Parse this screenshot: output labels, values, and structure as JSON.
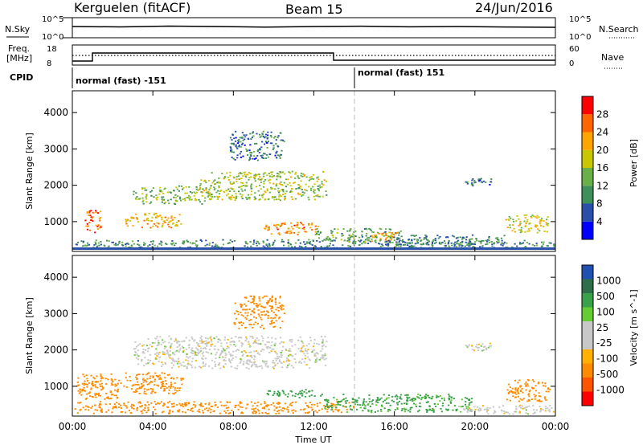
{
  "header": {
    "station": "Kerguelen (fitACF)",
    "beam": "Beam 15",
    "date": "24/Jun/2016"
  },
  "noise_panel": {
    "left_label": "N.Sky",
    "right_label": "N.Search",
    "left_ticks": [
      "10^5",
      "10^0"
    ],
    "right_ticks": [
      "10^5",
      "10^0"
    ]
  },
  "freq_panel": {
    "left_label_line1": "Freq.",
    "left_label_line2": "[MHz]",
    "left_ticks": [
      "18",
      "8"
    ],
    "right_label": "Nave",
    "right_ticks": [
      "60",
      "0"
    ]
  },
  "cpid_panel": {
    "label": "CPID",
    "programs": [
      {
        "name": "normal (fast) -151",
        "start_hour": 0
      },
      {
        "name": "normal (fast) 151",
        "start_hour": 14
      }
    ]
  },
  "colors": {
    "power_scale": [
      "#0000ff",
      "#2a4fa8",
      "#3f8f5a",
      "#6ab04a",
      "#c8c800",
      "#ffa500",
      "#ff6600",
      "#ff0000"
    ],
    "velocity_scale": [
      "#ff0000",
      "#ff5500",
      "#ff8c00",
      "#ffb000",
      "#c8c8c8",
      "#c8c8c8",
      "#66cc33",
      "#3aa04a",
      "#2e6f4a",
      "#2050b0"
    ],
    "ground_scatter": "#c8c8c8"
  },
  "chart_data": [
    {
      "type": "heatmap",
      "title": "",
      "xlabel": "Time UT",
      "ylabel": "Slant Range [km]",
      "colorbar_label": "Power [dB]",
      "colorbar_ticks": [
        "4",
        "8",
        "12",
        "16",
        "20",
        "24",
        "28"
      ],
      "x_ticks": [
        "00:00",
        "04:00",
        "08:00",
        "12:00",
        "16:00",
        "20:00",
        "00:00"
      ],
      "y_ticks": [
        "1000",
        "2000",
        "3000",
        "4000"
      ],
      "xlim": [
        0,
        24
      ],
      "ylim": [
        180,
        4600
      ],
      "regions": [
        {
          "t0": 0.1,
          "t1": 24.0,
          "r0": 260,
          "r1": 520,
          "value": 10
        },
        {
          "t0": 0.6,
          "t1": 1.4,
          "r0": 700,
          "r1": 1350,
          "value": 26
        },
        {
          "t0": 2.6,
          "t1": 5.4,
          "r0": 850,
          "r1": 1250,
          "value": 21
        },
        {
          "t0": 3.0,
          "t1": 7.0,
          "r0": 1500,
          "r1": 2000,
          "value": 14
        },
        {
          "t0": 6.2,
          "t1": 12.6,
          "r0": 1600,
          "r1": 2400,
          "value": 16
        },
        {
          "t0": 7.8,
          "t1": 10.5,
          "r0": 2700,
          "r1": 3500,
          "value": 8
        },
        {
          "t0": 9.5,
          "t1": 12.2,
          "r0": 650,
          "r1": 1000,
          "value": 24
        },
        {
          "t0": 12.0,
          "t1": 16.5,
          "r0": 450,
          "r1": 850,
          "value": 12
        },
        {
          "t0": 14.8,
          "t1": 16.2,
          "r0": 480,
          "r1": 720,
          "value": 22
        },
        {
          "t0": 15.5,
          "t1": 21.5,
          "r0": 350,
          "r1": 650,
          "value": 9
        },
        {
          "t0": 19.5,
          "t1": 20.8,
          "r0": 2000,
          "r1": 2200,
          "value": 8
        },
        {
          "t0": 21.5,
          "t1": 23.6,
          "r0": 700,
          "r1": 1200,
          "value": 19
        }
      ]
    },
    {
      "type": "heatmap",
      "title": "",
      "xlabel": "Time UT",
      "ylabel": "Slant Range [km]",
      "colorbar_label": "Velocity [m s^-1]",
      "colorbar_ticks": [
        "-1000",
        "-500",
        "-100",
        "-25",
        "25",
        "100",
        "500",
        "1000"
      ],
      "x_ticks": [
        "00:00",
        "04:00",
        "08:00",
        "12:00",
        "16:00",
        "20:00",
        "00:00"
      ],
      "y_ticks": [
        "1000",
        "2000",
        "3000",
        "4000"
      ],
      "xlim": [
        0,
        24
      ],
      "ylim": [
        180,
        4600
      ],
      "regions": [
        {
          "t0": 0.1,
          "t1": 14.0,
          "r0": 260,
          "r1": 600,
          "value": -150
        },
        {
          "t0": 0.2,
          "t1": 2.4,
          "r0": 650,
          "r1": 1400,
          "value": -300
        },
        {
          "t0": 2.5,
          "t1": 5.5,
          "r0": 800,
          "r1": 1400,
          "value": -200
        },
        {
          "t0": 3.0,
          "t1": 12.6,
          "r0": 1500,
          "r1": 2400,
          "value": 0
        },
        {
          "t0": 8.0,
          "t1": 10.5,
          "r0": 2600,
          "r1": 3500,
          "value": -150
        },
        {
          "t0": 9.5,
          "t1": 12.5,
          "r0": 700,
          "r1": 950,
          "value": 150
        },
        {
          "t0": 12.5,
          "t1": 20.0,
          "r0": 300,
          "r1": 800,
          "value": 120
        },
        {
          "t0": 19.0,
          "t1": 24.0,
          "r0": 250,
          "r1": 500,
          "value": 0
        },
        {
          "t0": 21.5,
          "t1": 23.8,
          "r0": 600,
          "r1": 1200,
          "value": -150
        },
        {
          "t0": 19.5,
          "t1": 20.8,
          "r0": 2000,
          "r1": 2200,
          "value": 0
        }
      ]
    }
  ]
}
